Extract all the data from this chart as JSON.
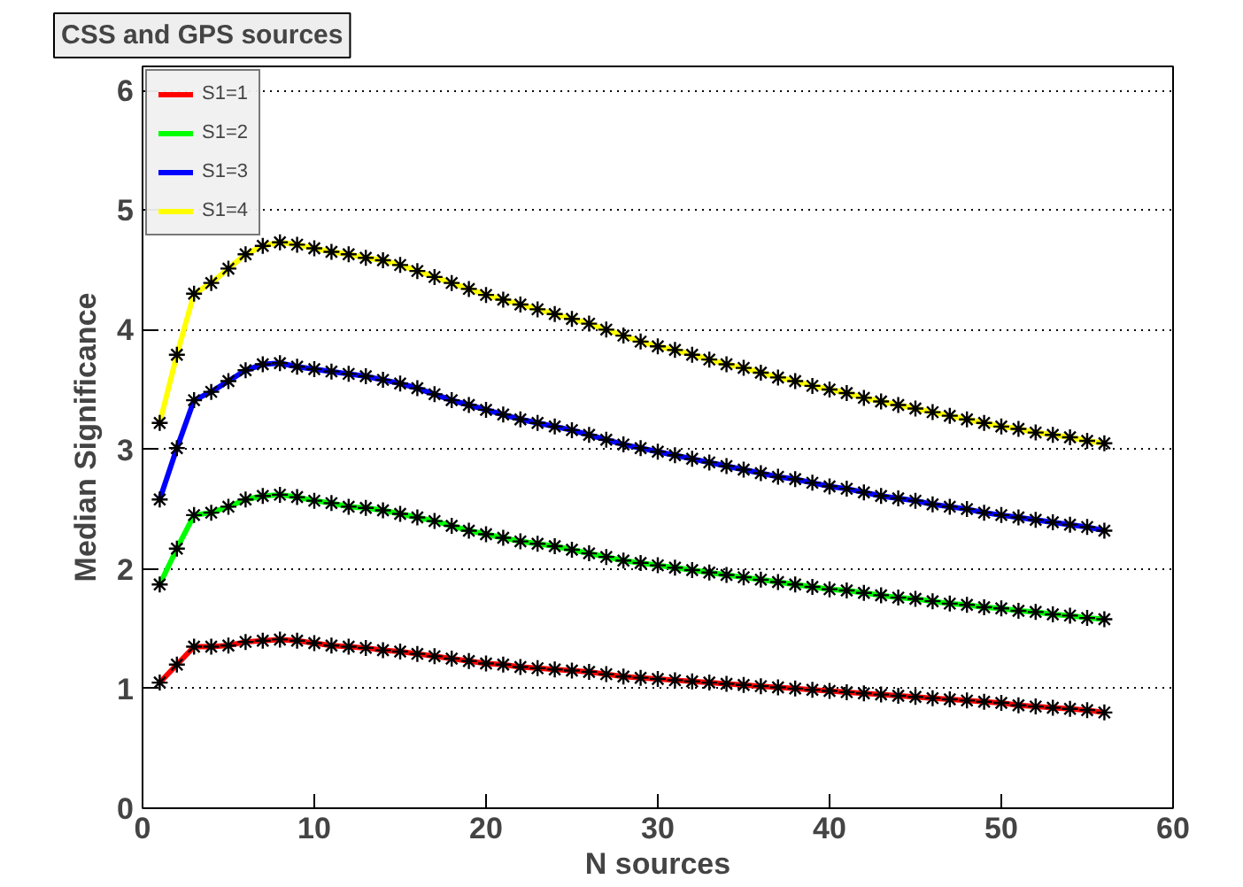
{
  "chart_data": {
    "type": "line",
    "title": "CSS and GPS sources",
    "xlabel": "N sources",
    "ylabel": "Median Significance",
    "x": [
      1,
      2,
      3,
      4,
      5,
      6,
      7,
      8,
      9,
      10,
      11,
      12,
      13,
      14,
      15,
      16,
      17,
      18,
      19,
      20,
      21,
      22,
      23,
      24,
      25,
      26,
      27,
      28,
      29,
      30,
      31,
      32,
      33,
      34,
      35,
      36,
      37,
      38,
      39,
      40,
      41,
      42,
      43,
      44,
      45,
      46,
      47,
      48,
      49,
      50,
      51,
      52,
      53,
      54,
      55,
      56
    ],
    "xlim": [
      0,
      60
    ],
    "xticks": [
      0,
      10,
      20,
      30,
      40,
      50,
      60
    ],
    "ylim": [
      0,
      6.2
    ],
    "yticks": [
      0,
      1,
      2,
      3,
      4,
      5,
      6
    ],
    "grid": "y",
    "legend": "top left",
    "marker": "cross",
    "line_style": "solid",
    "series": [
      {
        "name": "S1=1",
        "color": "#ff0000",
        "values": [
          1.05,
          1.2,
          1.35,
          1.35,
          1.36,
          1.39,
          1.4,
          1.41,
          1.4,
          1.38,
          1.36,
          1.35,
          1.34,
          1.32,
          1.31,
          1.29,
          1.27,
          1.25,
          1.23,
          1.21,
          1.2,
          1.18,
          1.17,
          1.16,
          1.15,
          1.14,
          1.12,
          1.1,
          1.09,
          1.08,
          1.07,
          1.06,
          1.05,
          1.04,
          1.03,
          1.02,
          1.01,
          1.0,
          0.99,
          0.98,
          0.97,
          0.96,
          0.95,
          0.94,
          0.93,
          0.92,
          0.91,
          0.9,
          0.89,
          0.88,
          0.86,
          0.85,
          0.84,
          0.83,
          0.82,
          0.8
        ]
      },
      {
        "name": "S1=2",
        "color": "#00ff00",
        "values": [
          1.87,
          2.17,
          2.45,
          2.47,
          2.52,
          2.58,
          2.61,
          2.62,
          2.6,
          2.57,
          2.55,
          2.52,
          2.51,
          2.49,
          2.46,
          2.43,
          2.4,
          2.36,
          2.32,
          2.29,
          2.26,
          2.23,
          2.21,
          2.19,
          2.16,
          2.13,
          2.1,
          2.07,
          2.05,
          2.03,
          2.01,
          1.99,
          1.97,
          1.95,
          1.93,
          1.91,
          1.89,
          1.87,
          1.85,
          1.83,
          1.82,
          1.8,
          1.78,
          1.76,
          1.75,
          1.73,
          1.71,
          1.7,
          1.68,
          1.67,
          1.65,
          1.64,
          1.62,
          1.61,
          1.59,
          1.58
        ]
      },
      {
        "name": "S1=3",
        "color": "#0000ff",
        "values": [
          2.58,
          3.01,
          3.41,
          3.48,
          3.57,
          3.66,
          3.71,
          3.72,
          3.69,
          3.67,
          3.65,
          3.63,
          3.61,
          3.58,
          3.55,
          3.51,
          3.46,
          3.41,
          3.37,
          3.33,
          3.29,
          3.25,
          3.22,
          3.19,
          3.16,
          3.12,
          3.08,
          3.04,
          3.01,
          2.98,
          2.95,
          2.92,
          2.89,
          2.86,
          2.83,
          2.8,
          2.77,
          2.75,
          2.72,
          2.69,
          2.67,
          2.64,
          2.61,
          2.59,
          2.57,
          2.54,
          2.52,
          2.5,
          2.47,
          2.45,
          2.43,
          2.41,
          2.39,
          2.37,
          2.35,
          2.32
        ]
      },
      {
        "name": "S1=4",
        "color": "#ffff00",
        "values": [
          3.22,
          3.79,
          4.3,
          4.39,
          4.51,
          4.63,
          4.7,
          4.73,
          4.71,
          4.68,
          4.65,
          4.63,
          4.6,
          4.58,
          4.54,
          4.49,
          4.44,
          4.39,
          4.34,
          4.29,
          4.25,
          4.21,
          4.17,
          4.13,
          4.09,
          4.05,
          4.0,
          3.95,
          3.9,
          3.86,
          3.83,
          3.79,
          3.75,
          3.71,
          3.68,
          3.64,
          3.6,
          3.57,
          3.53,
          3.5,
          3.47,
          3.43,
          3.4,
          3.37,
          3.34,
          3.31,
          3.28,
          3.25,
          3.22,
          3.19,
          3.17,
          3.14,
          3.12,
          3.1,
          3.07,
          3.05
        ]
      }
    ]
  }
}
